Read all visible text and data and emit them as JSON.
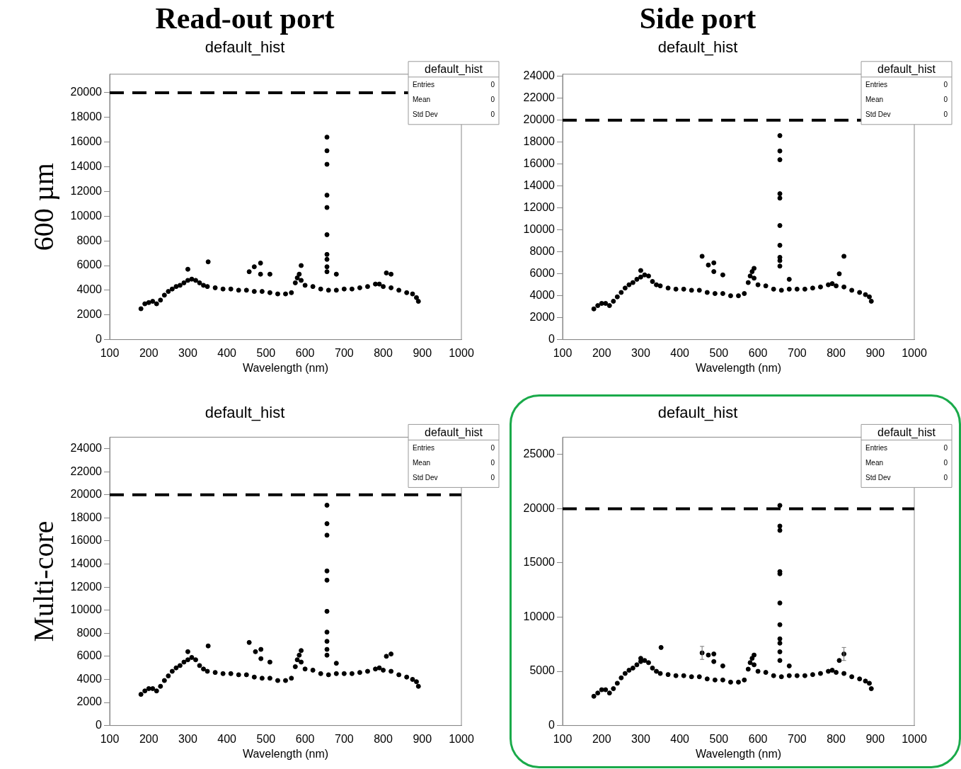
{
  "chart_data": [
    {
      "type": "scatter",
      "title": "Read-out port",
      "subtitle": "default_hist",
      "xlabel": "Wavelength (nm)",
      "ylabel": "600 µm",
      "marker": "circle",
      "xlim": [
        100,
        1000
      ],
      "xticks": [
        100,
        200,
        300,
        400,
        500,
        600,
        700,
        800,
        900,
        1000
      ],
      "ylim": [
        0,
        21500
      ],
      "yticks": [
        0,
        2000,
        4000,
        6000,
        8000,
        10000,
        12000,
        14000,
        16000,
        18000,
        20000
      ],
      "ref_lines": [
        {
          "axis": "y",
          "value": 20000,
          "color": "#000000",
          "line_style": "dashed"
        }
      ],
      "annotations": [
        "default_hist",
        "Entries",
        "0",
        "Mean",
        "0",
        "Std Dev",
        "0"
      ],
      "series": [
        {
          "color": "#000000",
          "x": [
            180,
            190,
            200,
            210,
            220,
            230,
            240,
            250,
            260,
            270,
            280,
            290,
            300,
            310,
            320,
            330,
            340,
            350,
            370,
            390,
            410,
            430,
            450,
            470,
            490,
            510,
            530,
            550,
            565,
            575,
            580,
            585,
            590,
            600,
            620,
            640,
            660,
            680,
            700,
            720,
            740,
            760,
            780,
            790,
            800,
            820,
            840,
            860,
            875,
            885,
            890,
            656,
            656,
            656,
            656,
            656,
            656,
            656,
            656,
            656,
            656
          ],
          "values": [
            2500,
            2900,
            3000,
            3100,
            2900,
            3200,
            3600,
            3900,
            4100,
            4300,
            4400,
            4600,
            4800,
            4900,
            4800,
            4600,
            4400,
            4300,
            4200,
            4100,
            4100,
            4000,
            4000,
            3900,
            3900,
            3800,
            3700,
            3700,
            3800,
            4600,
            5000,
            5300,
            4800,
            4400,
            4300,
            4100,
            4000,
            4000,
            4100,
            4100,
            4200,
            4300,
            4500,
            4500,
            4300,
            4200,
            4000,
            3800,
            3700,
            3400,
            3100,
            16400,
            15300,
            14200,
            11700,
            10700,
            8500,
            6900,
            6500,
            5900,
            5500
          ]
        },
        {
          "color": "#000000",
          "x": [
            300,
            352,
            457,
            470,
            486,
            486,
            510,
            590,
            680,
            808,
            820
          ],
          "values": [
            5700,
            6300,
            5500,
            5900,
            6200,
            5300,
            5300,
            6000,
            5300,
            5400,
            5300
          ]
        }
      ]
    },
    {
      "type": "scatter",
      "title": "Side port",
      "subtitle": "default_hist",
      "xlabel": "Wavelength (nm)",
      "marker": "circle",
      "xlim": [
        100,
        1000
      ],
      "xticks": [
        100,
        200,
        300,
        400,
        500,
        600,
        700,
        800,
        900,
        1000
      ],
      "ylim": [
        0,
        24200
      ],
      "yticks": [
        0,
        2000,
        4000,
        6000,
        8000,
        10000,
        12000,
        14000,
        16000,
        18000,
        20000,
        22000,
        24000
      ],
      "ref_lines": [
        {
          "axis": "y",
          "value": 20000,
          "color": "#000000",
          "line_style": "dashed"
        }
      ],
      "annotations": [
        "default_hist",
        "Entries",
        "0",
        "Mean",
        "0",
        "Std Dev",
        "0"
      ],
      "series": [
        {
          "color": "#000000",
          "x": [
            180,
            190,
            200,
            210,
            220,
            230,
            240,
            250,
            260,
            270,
            280,
            290,
            300,
            310,
            320,
            330,
            340,
            350,
            370,
            390,
            410,
            430,
            450,
            470,
            490,
            510,
            530,
            550,
            565,
            575,
            580,
            585,
            590,
            600,
            620,
            640,
            660,
            680,
            700,
            720,
            740,
            760,
            780,
            790,
            800,
            820,
            840,
            860,
            875,
            885,
            890,
            656,
            656,
            656,
            656,
            656,
            656,
            656,
            656,
            656,
            656
          ],
          "values": [
            2800,
            3100,
            3300,
            3300,
            3100,
            3500,
            3900,
            4300,
            4700,
            5000,
            5200,
            5500,
            5700,
            5900,
            5800,
            5300,
            5000,
            4900,
            4700,
            4600,
            4600,
            4500,
            4500,
            4300,
            4200,
            4200,
            4000,
            4000,
            4200,
            5200,
            5800,
            6200,
            5600,
            5000,
            4900,
            4600,
            4500,
            4600,
            4600,
            4600,
            4700,
            4800,
            5000,
            5100,
            4900,
            4800,
            4500,
            4300,
            4100,
            3900,
            3500,
            18600,
            17200,
            16400,
            13300,
            12900,
            10400,
            8600,
            7500,
            7200,
            6700
          ]
        },
        {
          "color": "#000000",
          "x": [
            300,
            457,
            473,
            487,
            487,
            510,
            590,
            680,
            808,
            820
          ],
          "values": [
            6300,
            7600,
            6800,
            7000,
            6200,
            5900,
            6500,
            5500,
            6000,
            7600
          ]
        }
      ]
    },
    {
      "type": "scatter",
      "title": "default_hist",
      "xlabel": "Wavelength (nm)",
      "ylabel": "Multi-core",
      "marker": "circle",
      "xlim": [
        100,
        1000
      ],
      "xticks": [
        100,
        200,
        300,
        400,
        500,
        600,
        700,
        800,
        900,
        1000
      ],
      "ylim": [
        0,
        25000
      ],
      "yticks": [
        0,
        2000,
        4000,
        6000,
        8000,
        10000,
        12000,
        14000,
        16000,
        18000,
        20000,
        22000,
        24000
      ],
      "ref_lines": [
        {
          "axis": "y",
          "value": 20000,
          "color": "#000000",
          "line_style": "dashed"
        }
      ],
      "annotations": [
        "default_hist",
        "Entries",
        "0",
        "Mean",
        "0",
        "Std Dev",
        "0"
      ],
      "series": [
        {
          "color": "#000000",
          "x": [
            180,
            190,
            200,
            210,
            220,
            230,
            240,
            250,
            260,
            270,
            280,
            290,
            300,
            310,
            320,
            330,
            340,
            350,
            370,
            390,
            410,
            430,
            450,
            470,
            490,
            510,
            530,
            550,
            565,
            575,
            580,
            585,
            590,
            600,
            620,
            640,
            660,
            680,
            700,
            720,
            740,
            760,
            780,
            790,
            800,
            820,
            840,
            860,
            875,
            885,
            890,
            656,
            656,
            656,
            656,
            656,
            656,
            656,
            656,
            656,
            656
          ],
          "values": [
            2700,
            3000,
            3200,
            3200,
            3000,
            3400,
            3900,
            4300,
            4700,
            5000,
            5200,
            5500,
            5700,
            5900,
            5700,
            5200,
            4900,
            4700,
            4600,
            4500,
            4500,
            4400,
            4400,
            4200,
            4100,
            4100,
            3900,
            3900,
            4100,
            5100,
            5700,
            6100,
            5500,
            4900,
            4800,
            4500,
            4400,
            4500,
            4500,
            4500,
            4600,
            4700,
            4900,
            5000,
            4800,
            4700,
            4400,
            4200,
            4000,
            3800,
            3400,
            19100,
            17500,
            16500,
            13400,
            12600,
            9900,
            8100,
            7300,
            6600,
            6100
          ]
        },
        {
          "color": "#000000",
          "x": [
            300,
            352,
            457,
            473,
            487,
            487,
            510,
            590,
            680,
            808,
            820
          ],
          "values": [
            6400,
            6900,
            7200,
            6400,
            6600,
            5800,
            5500,
            6500,
            5400,
            6000,
            6200
          ]
        }
      ]
    },
    {
      "type": "scatter",
      "title": "default_hist",
      "xlabel": "Wavelength (nm)",
      "marker": "circle",
      "xlim": [
        100,
        1000
      ],
      "xticks": [
        100,
        200,
        300,
        400,
        500,
        600,
        700,
        800,
        900,
        1000
      ],
      "ylim": [
        0,
        26600
      ],
      "yticks": [
        0,
        5000,
        10000,
        15000,
        20000,
        25000
      ],
      "ref_lines": [
        {
          "axis": "y",
          "value": 20000,
          "color": "#000000",
          "line_style": "dashed"
        }
      ],
      "annotations": [
        "default_hist",
        "Entries",
        "0",
        "Mean",
        "0",
        "Std Dev",
        "0"
      ],
      "series": [
        {
          "color": "#000000",
          "x": [
            180,
            190,
            200,
            210,
            220,
            230,
            240,
            250,
            260,
            270,
            280,
            290,
            300,
            310,
            320,
            330,
            340,
            350,
            370,
            390,
            410,
            430,
            450,
            470,
            490,
            510,
            530,
            550,
            565,
            575,
            580,
            585,
            590,
            600,
            620,
            640,
            660,
            680,
            700,
            720,
            740,
            760,
            780,
            790,
            800,
            820,
            840,
            860,
            875,
            885,
            890,
            656,
            656,
            656,
            656,
            656,
            656,
            656,
            656,
            656,
            656,
            656
          ],
          "values": [
            2700,
            3000,
            3300,
            3300,
            3000,
            3400,
            3900,
            4400,
            4800,
            5100,
            5300,
            5600,
            5900,
            6000,
            5800,
            5300,
            5000,
            4800,
            4700,
            4600,
            4600,
            4500,
            4500,
            4300,
            4200,
            4200,
            4000,
            4000,
            4200,
            5200,
            5800,
            6200,
            5600,
            5000,
            4900,
            4600,
            4500,
            4600,
            4600,
            4600,
            4700,
            4800,
            5000,
            5100,
            4900,
            4800,
            4500,
            4300,
            4100,
            3900,
            3400,
            20300,
            18400,
            18000,
            14200,
            14000,
            11300,
            9300,
            8000,
            7600,
            6800,
            6000
          ]
        },
        {
          "color": "#000000",
          "x": [
            300,
            352,
            457,
            473,
            487,
            487,
            510,
            590,
            680,
            808,
            820
          ],
          "values": [
            6200,
            7200,
            6700,
            6500,
            6600,
            5900,
            5500,
            6500,
            5500,
            6000,
            6600
          ],
          "errors": [
            null,
            null,
            600,
            null,
            null,
            null,
            null,
            null,
            null,
            null,
            600
          ]
        }
      ]
    }
  ]
}
